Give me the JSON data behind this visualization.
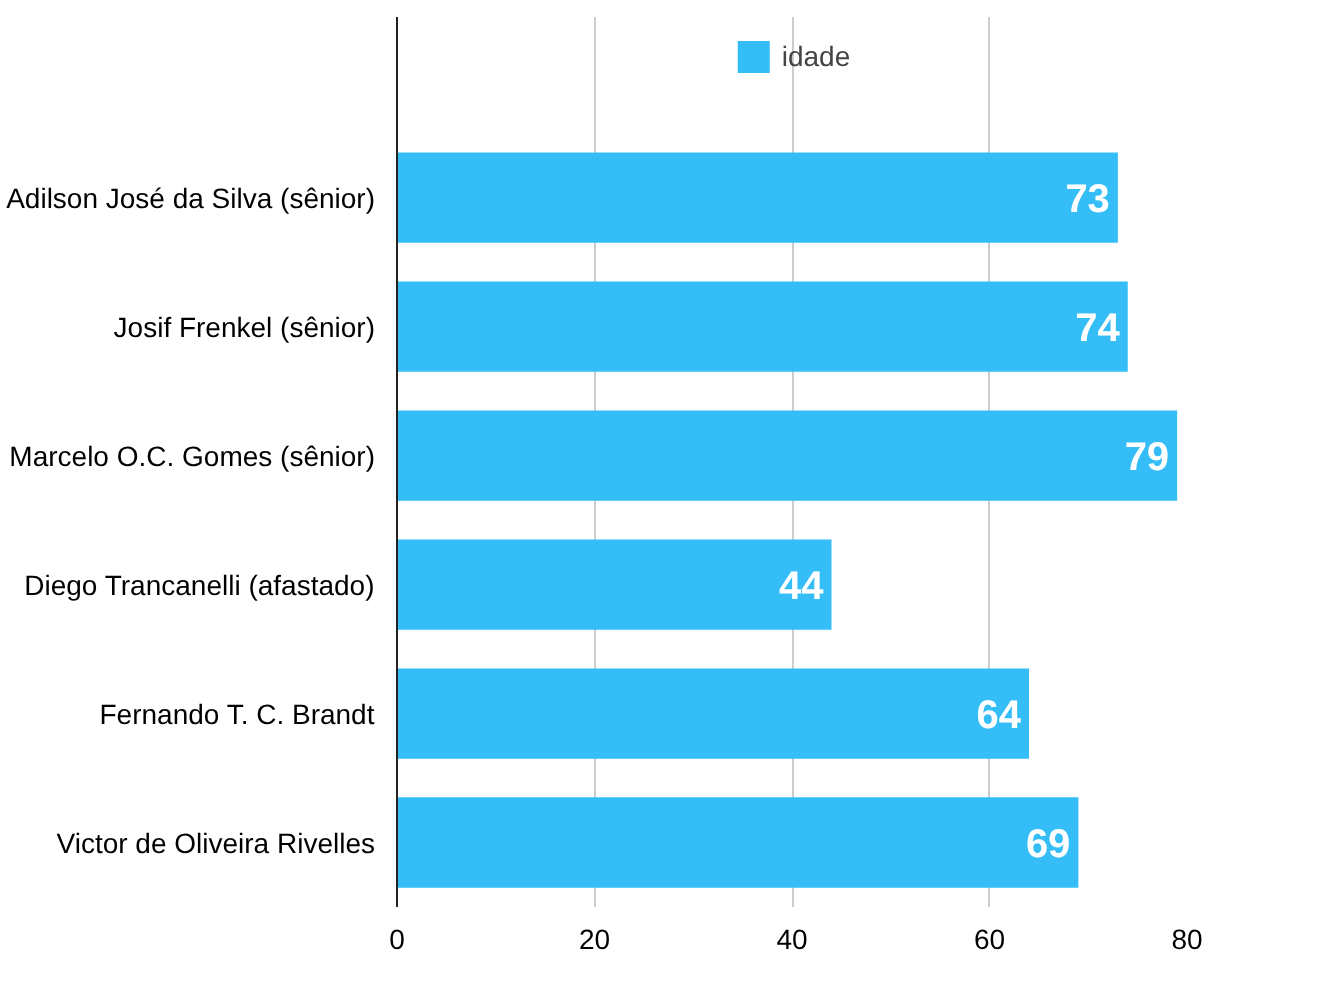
{
  "chart_data": {
    "type": "bar",
    "orientation": "horizontal",
    "categories": [
      "Adilson José da Silva (sênior)",
      "Josif Frenkel (sênior)",
      "Marcelo O.C. Gomes (sênior)",
      "Diego Trancanelli (afastado)",
      "Fernando T. C. Brandt",
      "Victor de Oliveira Rivelles"
    ],
    "series": [
      {
        "name": "idade",
        "color": "#35bdf7",
        "values": [
          73,
          74,
          79,
          44,
          64,
          69
        ]
      }
    ],
    "xlim": [
      0,
      80
    ],
    "xticks": [
      0,
      20,
      40,
      60,
      80
    ],
    "grid": "x",
    "legend": "top",
    "data_labels": true
  }
}
